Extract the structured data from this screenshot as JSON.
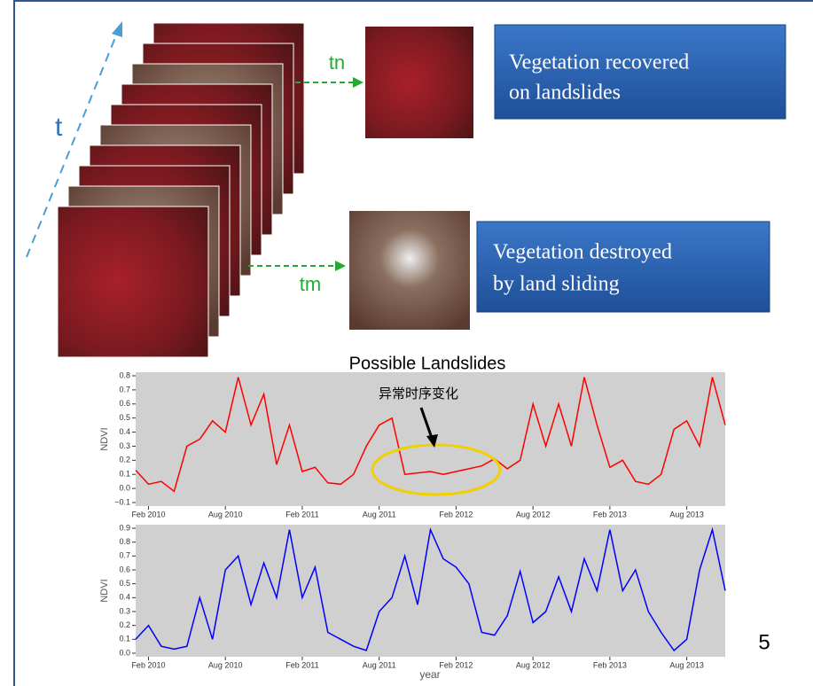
{
  "slide": {
    "time_label": "t",
    "late_label": "tn",
    "early_label": "tm",
    "recovered_box": [
      "Vegetation recovered",
      "on  landslides"
    ],
    "destroyed_box": [
      "Vegetation destroyed",
      "by  land sliding"
    ],
    "page_number": "5"
  },
  "chart_data": [
    {
      "type": "line",
      "title": "Possible Landslides",
      "y_label": "NDVI",
      "annotation": "异常时序变化",
      "color": "#ff0000",
      "x": [
        "2010-01",
        "2010-02",
        "2010-03",
        "2010-04",
        "2010-05",
        "2010-06",
        "2010-07",
        "2010-08",
        "2010-09",
        "2010-10",
        "2010-11",
        "2010-12",
        "2011-01",
        "2011-02",
        "2011-03",
        "2011-04",
        "2011-05",
        "2011-06",
        "2011-07",
        "2011-08",
        "2011-09",
        "2011-10",
        "2011-11",
        "2011-12",
        "2012-01",
        "2012-02",
        "2012-03",
        "2012-04",
        "2012-05",
        "2012-06",
        "2012-07",
        "2012-08",
        "2012-09",
        "2012-10",
        "2012-11",
        "2012-12",
        "2013-01",
        "2013-02",
        "2013-03",
        "2013-04",
        "2013-05",
        "2013-06",
        "2013-07",
        "2013-08",
        "2013-09",
        "2013-10",
        "2013-11"
      ],
      "values": [
        0.13,
        0.03,
        0.05,
        -0.02,
        0.3,
        0.35,
        0.48,
        0.4,
        0.79,
        0.45,
        0.67,
        0.17,
        0.45,
        0.12,
        0.15,
        0.04,
        0.03,
        0.1,
        0.3,
        0.45,
        0.5,
        0.1,
        0.11,
        0.12,
        0.1,
        0.12,
        0.14,
        0.16,
        0.21,
        0.14,
        0.2,
        0.6,
        0.3,
        0.6,
        0.3,
        0.79,
        0.45,
        0.15,
        0.2,
        0.05,
        0.03,
        0.1,
        0.42,
        0.48,
        0.3,
        0.79,
        0.45
      ],
      "xlim": [
        "2010-01",
        "2013-11"
      ],
      "xticks": [
        {
          "value": "2010-02",
          "label": "Feb 2010"
        },
        {
          "value": "2010-08",
          "label": "Aug 2010"
        },
        {
          "value": "2011-02",
          "label": "Feb 2011"
        },
        {
          "value": "2011-08",
          "label": "Aug 2011"
        },
        {
          "value": "2012-02",
          "label": "Feb 2012"
        },
        {
          "value": "2012-08",
          "label": "Aug 2012"
        },
        {
          "value": "2013-02",
          "label": "Feb 2013"
        },
        {
          "value": "2013-08",
          "label": "Aug 2013"
        }
      ],
      "ylim": [
        -0.1,
        0.8
      ],
      "yticks": [
        {
          "value": -0.1,
          "label": "−0.1"
        },
        {
          "value": 0,
          "label": "0.0"
        },
        0.1,
        0.2,
        0.3,
        0.4,
        0.5,
        0.6,
        0.7,
        0.8
      ]
    },
    {
      "type": "line",
      "y_label": "NDVI",
      "x_label": "year",
      "color": "#0000ff",
      "x": [
        "2010-01",
        "2010-02",
        "2010-03",
        "2010-04",
        "2010-05",
        "2010-06",
        "2010-07",
        "2010-08",
        "2010-09",
        "2010-10",
        "2010-11",
        "2010-12",
        "2011-01",
        "2011-02",
        "2011-03",
        "2011-04",
        "2011-05",
        "2011-06",
        "2011-07",
        "2011-08",
        "2011-09",
        "2011-10",
        "2011-11",
        "2011-12",
        "2012-01",
        "2012-02",
        "2012-03",
        "2012-04",
        "2012-05",
        "2012-06",
        "2012-07",
        "2012-08",
        "2012-09",
        "2012-10",
        "2012-11",
        "2012-12",
        "2013-01",
        "2013-02",
        "2013-03",
        "2013-04",
        "2013-05",
        "2013-06",
        "2013-07",
        "2013-08",
        "2013-09",
        "2013-10",
        "2013-11"
      ],
      "values": [
        0.1,
        0.2,
        0.05,
        0.03,
        0.05,
        0.4,
        0.1,
        0.6,
        0.7,
        0.35,
        0.65,
        0.4,
        0.89,
        0.4,
        0.62,
        0.15,
        0.1,
        0.05,
        0.02,
        0.3,
        0.4,
        0.7,
        0.35,
        0.89,
        0.68,
        0.62,
        0.5,
        0.15,
        0.13,
        0.27,
        0.59,
        0.22,
        0.3,
        0.55,
        0.3,
        0.68,
        0.45,
        0.89,
        0.45,
        0.6,
        0.3,
        0.15,
        0.02,
        0.1,
        0.6,
        0.89,
        0.45
      ],
      "xlim": [
        "2010-01",
        "2013-11"
      ],
      "xticks": [
        {
          "value": "2010-02",
          "label": "Feb 2010"
        },
        {
          "value": "2010-08",
          "label": "Aug 2010"
        },
        {
          "value": "2011-02",
          "label": "Feb 2011"
        },
        {
          "value": "2011-08",
          "label": "Aug 2011"
        },
        {
          "value": "2012-02",
          "label": "Feb 2012"
        },
        {
          "value": "2012-08",
          "label": "Aug 2012"
        },
        {
          "value": "2013-02",
          "label": "Feb 2013"
        },
        {
          "value": "2013-08",
          "label": "Aug 2013"
        }
      ],
      "ylim": [
        0,
        0.9
      ],
      "yticks": [
        {
          "value": 0,
          "label": "0.0"
        },
        0.1,
        0.2,
        0.3,
        0.4,
        0.5,
        0.6,
        0.7,
        0.8,
        0.9
      ]
    }
  ]
}
